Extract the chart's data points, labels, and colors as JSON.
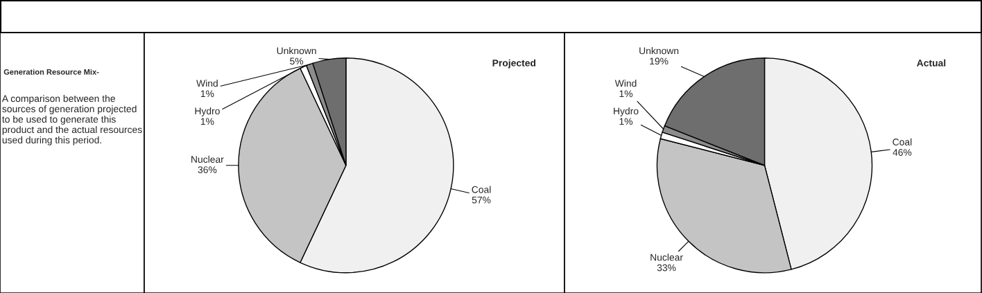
{
  "chart_data": [
    {
      "type": "other",
      "title": "Generation Resource Mix-",
      "annotations": [
        "A comparison between the sources of generation projected to be used to generate this product and the actual resources used during this period."
      ]
    },
    {
      "type": "pie",
      "title": "Projected",
      "categories": [
        "Coal",
        "Nuclear",
        "Hydro",
        "Wind",
        "Unknown"
      ],
      "values": [
        57,
        36,
        1,
        1,
        5
      ],
      "value_labels": [
        "57%",
        "36%",
        "1%",
        "1%",
        "5%"
      ],
      "colors": [
        "#f0f0f0",
        "#c4c4c4",
        "#ffffff",
        "#8c8c8c",
        "#6e6e6e"
      ]
    },
    {
      "type": "pie",
      "title": "Actual",
      "categories": [
        "Coal",
        "Nuclear",
        "Hydro",
        "Wind",
        "Unknown"
      ],
      "values": [
        46,
        33,
        1,
        1,
        19
      ],
      "value_labels": [
        "46%",
        "33%",
        "1%",
        "1%",
        "19%"
      ],
      "colors": [
        "#f0f0f0",
        "#c4c4c4",
        "#ffffff",
        "#8c8c8c",
        "#6e6e6e"
      ]
    }
  ]
}
